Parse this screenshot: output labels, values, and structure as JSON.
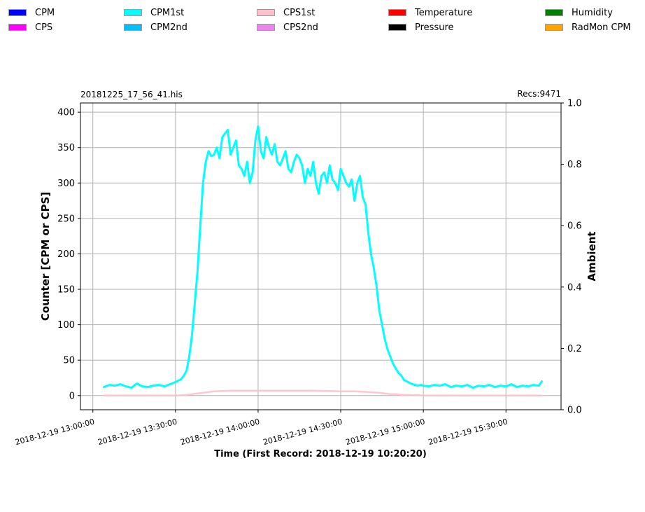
{
  "legend": [
    {
      "label": "CPM",
      "color": "#0000ff"
    },
    {
      "label": "CPS",
      "color": "#ff00ff"
    },
    {
      "label": "CPM1st",
      "color": "#00ffff"
    },
    {
      "label": "CPM2nd",
      "color": "#00bfff"
    },
    {
      "label": "CPS1st",
      "color": "#ffc0cb"
    },
    {
      "label": "CPS2nd",
      "color": "#ee82ee"
    },
    {
      "label": "Temperature",
      "color": "#ff0000"
    },
    {
      "label": "Pressure",
      "color": "#000000"
    },
    {
      "label": "Humidity",
      "color": "#008000"
    },
    {
      "label": "RadMon CPM",
      "color": "#ffa500"
    }
  ],
  "chart_data": {
    "type": "line",
    "filename": "20181225_17_56_41.his",
    "records_label": "Recs:9471",
    "xlabel": "Time (First Record: 2018-12-19 10:20:20)",
    "ylabel_left": "Counter  [CPM or CPS]",
    "ylabel_right": "Ambient",
    "x_ticks": [
      "2018-12-19  13:00:00",
      "2018-12-19  13:30:00",
      "2018-12-19  14:00:00",
      "2018-12-19  14:30:00",
      "2018-12-19  15:00:00",
      "2018-12-19  15:30:00"
    ],
    "x_tick_minutes": [
      0,
      30,
      60,
      90,
      120,
      150
    ],
    "xlim_minutes": [
      -4.5,
      170
    ],
    "y_left_ticks": [
      "0",
      "50",
      "100",
      "150",
      "200",
      "250",
      "300",
      "350",
      "400"
    ],
    "y_left_values": [
      0,
      50,
      100,
      150,
      200,
      250,
      300,
      350,
      400
    ],
    "ylim_left": [
      -20,
      413
    ],
    "y_right_ticks": [
      "0.0",
      "0.2",
      "0.4",
      "0.6",
      "0.8",
      "1.0"
    ],
    "y_right_values": [
      0,
      0.2,
      0.4,
      0.6,
      0.8,
      1.0
    ],
    "ylim_right": [
      0,
      1
    ],
    "grid": true,
    "series": [
      {
        "name": "CPM1st",
        "color": "#00ffff",
        "x": [
          4,
          6,
          8,
          10,
          12,
          14,
          16,
          18,
          20,
          22,
          24,
          26,
          28,
          30,
          32,
          33,
          34,
          35,
          36,
          37,
          38,
          39,
          40,
          41,
          42,
          43,
          44,
          45,
          46,
          47,
          48,
          49,
          50,
          51,
          52,
          53,
          54,
          55,
          56,
          57,
          58,
          59,
          60,
          61,
          62,
          63,
          64,
          65,
          66,
          67,
          68,
          69,
          70,
          71,
          72,
          73,
          74,
          75,
          76,
          77,
          78,
          79,
          80,
          81,
          82,
          83,
          84,
          85,
          86,
          87,
          88,
          89,
          90,
          91,
          92,
          93,
          94,
          95,
          96,
          97,
          98,
          99,
          100,
          101,
          102,
          103,
          104,
          105,
          106,
          107,
          108,
          109,
          110,
          111,
          112,
          113,
          114,
          115,
          116,
          117,
          118,
          119,
          120,
          122,
          124,
          126,
          128,
          130,
          132,
          134,
          136,
          138,
          140,
          142,
          144,
          146,
          148,
          150,
          152,
          154,
          156,
          158,
          160,
          162,
          163
        ],
        "y": [
          12,
          15,
          14,
          16,
          13,
          11,
          17,
          13,
          12,
          14,
          15,
          13,
          16,
          19,
          23,
          28,
          35,
          55,
          85,
          130,
          175,
          240,
          300,
          330,
          345,
          338,
          340,
          350,
          335,
          365,
          370,
          375,
          340,
          350,
          360,
          325,
          320,
          310,
          330,
          300,
          315,
          360,
          380,
          345,
          335,
          365,
          350,
          340,
          355,
          330,
          325,
          335,
          345,
          320,
          315,
          330,
          340,
          335,
          325,
          300,
          320,
          310,
          330,
          300,
          285,
          310,
          315,
          300,
          325,
          305,
          300,
          290,
          320,
          310,
          300,
          295,
          305,
          275,
          300,
          310,
          280,
          270,
          230,
          200,
          180,
          155,
          120,
          100,
          80,
          65,
          55,
          45,
          38,
          32,
          28,
          22,
          20,
          18,
          16,
          15,
          14,
          15,
          14,
          13,
          15,
          14,
          16,
          12,
          14,
          13,
          15,
          11,
          14,
          13,
          15,
          12,
          14,
          13,
          16,
          12,
          14,
          13,
          15,
          14,
          20
        ]
      },
      {
        "name": "CPS1st",
        "color": "#ffc0cb",
        "x": [
          4,
          10,
          16,
          22,
          28,
          30,
          32,
          34,
          36,
          38,
          40,
          42,
          44,
          50,
          60,
          70,
          80,
          90,
          95,
          100,
          104,
          106,
          108,
          110,
          112,
          114,
          116,
          118,
          120,
          130,
          140,
          150,
          163
        ],
        "y": [
          0,
          0,
          0,
          0,
          0,
          0,
          0.5,
          1,
          2,
          3,
          4,
          5,
          6,
          7,
          7,
          7,
          7,
          6,
          6,
          5,
          4,
          3,
          2,
          2,
          1,
          1,
          0.5,
          0.5,
          0,
          0,
          0,
          0,
          0
        ]
      }
    ]
  }
}
